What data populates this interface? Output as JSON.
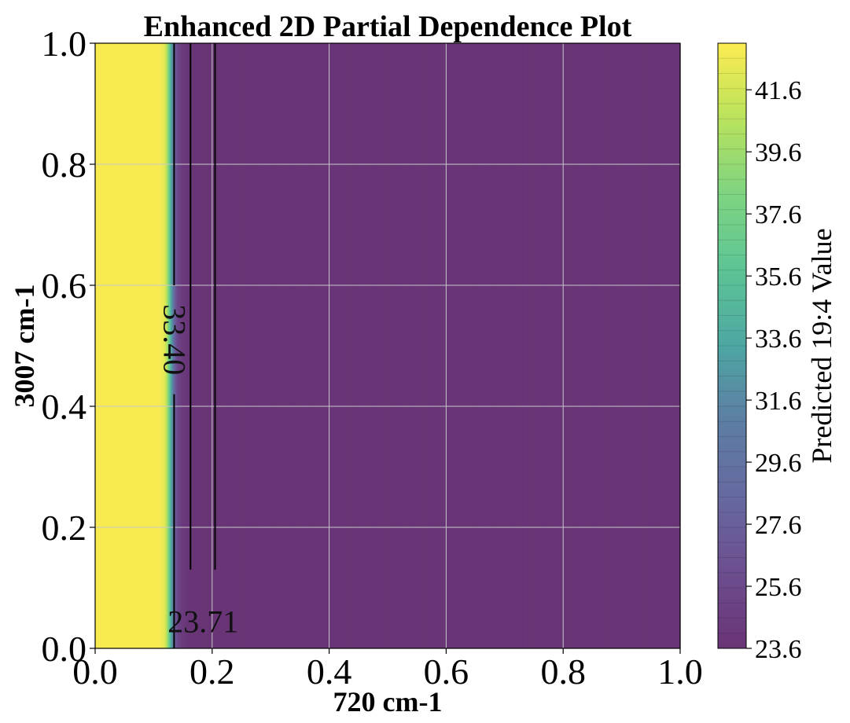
{
  "chart_data": {
    "type": "heatmap",
    "title": "Enhanced 2D Partial Dependence Plot",
    "xlabel": "720 cm-1",
    "ylabel": "3007 cm-1",
    "xlim": [
      0.0,
      1.0
    ],
    "ylim": [
      0.0,
      1.0
    ],
    "xticks": [
      "0.0",
      "0.2",
      "0.4",
      "0.6",
      "0.8",
      "1.0"
    ],
    "yticks": [
      "0.0",
      "0.2",
      "0.4",
      "0.6",
      "0.8",
      "1.0"
    ],
    "grid": true,
    "colormap": "viridis",
    "colorbar": {
      "label": "Predicted 19:4 Value",
      "range": [
        23.6,
        43.1
      ],
      "ticks": [
        "23.6",
        "25.6",
        "27.6",
        "29.6",
        "31.6",
        "33.6",
        "35.6",
        "37.6",
        "39.6",
        "41.6"
      ]
    },
    "surface": {
      "description_points_720": [
        0.0,
        0.11,
        0.12,
        0.125,
        0.13,
        0.135,
        0.14,
        0.15,
        0.16,
        1.0
      ],
      "values": [
        42.9,
        42.9,
        42.0,
        38.5,
        33.4,
        29.0,
        25.5,
        24.2,
        23.71,
        23.71
      ]
    },
    "contours": [
      {
        "label": "33.40",
        "x": 0.135
      },
      {
        "label": "23.71",
        "x": 0.163
      },
      {
        "label": "",
        "x": 0.205
      }
    ]
  }
}
